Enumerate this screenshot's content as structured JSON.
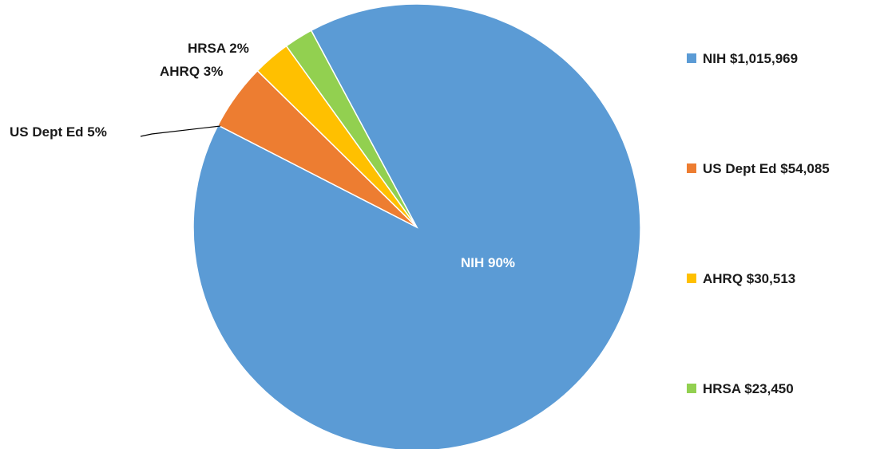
{
  "chart_data": {
    "type": "pie",
    "title": "",
    "slices": [
      {
        "name": "NIH",
        "value": 1015969,
        "percent_label": "NIH 90%",
        "legend_label": "NIH $1,015,969",
        "color": "#5B9BD5"
      },
      {
        "name": "US Dept Ed",
        "value": 54085,
        "percent_label": "US Dept Ed 5%",
        "legend_label": "US Dept Ed $54,085",
        "color": "#ED7D31"
      },
      {
        "name": "AHRQ",
        "value": 30513,
        "percent_label": "AHRQ 3%",
        "legend_label": "AHRQ $30,513",
        "color": "#FFC000"
      },
      {
        "name": "HRSA",
        "value": 23450,
        "percent_label": "HRSA 2%",
        "legend_label": "HRSA $23,450",
        "color": "#92D050"
      }
    ],
    "legend_position": "right"
  }
}
